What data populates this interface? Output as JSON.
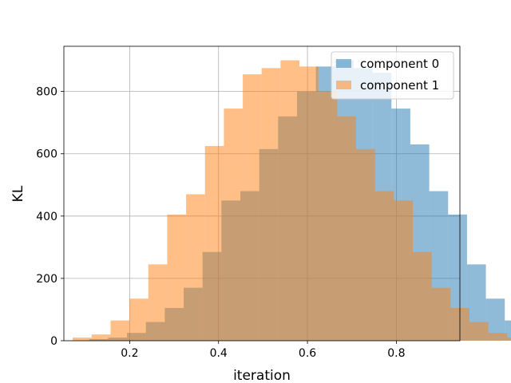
{
  "chart_data": {
    "type": "histogram",
    "title": "",
    "xlabel": "iteration",
    "ylabel": "KL",
    "xlim": [
      0.052,
      0.943
    ],
    "ylim": [
      0,
      945
    ],
    "xticks": [
      0.2,
      0.4,
      0.6,
      0.8
    ],
    "xtick_labels": [
      "0.2",
      "0.4",
      "0.6",
      "0.8"
    ],
    "yticks": [
      0,
      200,
      400,
      600,
      800
    ],
    "ytick_labels": [
      "0",
      "200",
      "400",
      "600",
      "800"
    ],
    "grid": true,
    "legend_position": "top-right",
    "bar_opacity": 0.5,
    "series": [
      {
        "name": "component 0",
        "color": "#1f77b4",
        "bin_start": 0.109,
        "bin_width": 0.0425,
        "counts": [
          5,
          10,
          25,
          60,
          105,
          170,
          285,
          450,
          480,
          615,
          720,
          800,
          880,
          900,
          875,
          860,
          745,
          630,
          480,
          405,
          245,
          135,
          65,
          20,
          10
        ]
      },
      {
        "name": "component 1",
        "color": "#ff7f0e",
        "bin_start": 0.072,
        "bin_width": 0.0425,
        "counts": [
          10,
          20,
          65,
          135,
          245,
          405,
          470,
          625,
          745,
          855,
          875,
          900,
          880,
          800,
          720,
          615,
          480,
          450,
          285,
          170,
          105,
          60,
          25,
          10,
          5
        ]
      }
    ]
  }
}
